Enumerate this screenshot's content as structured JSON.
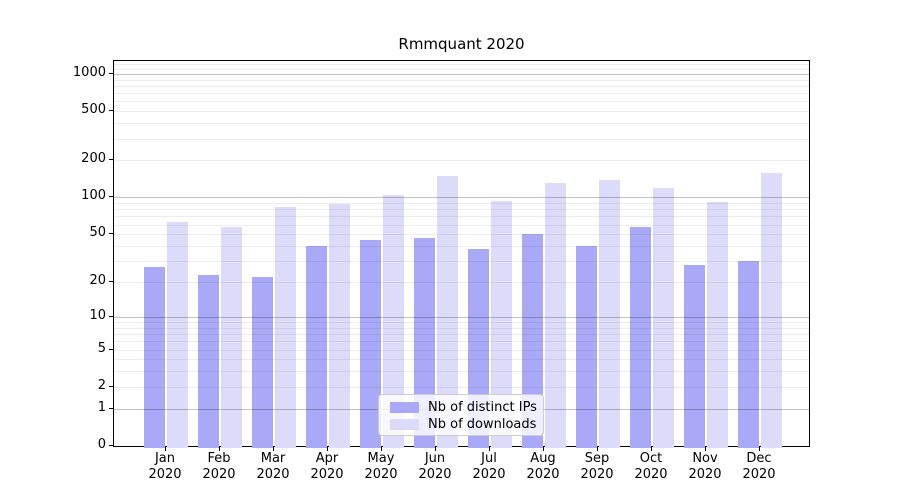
{
  "chart_data": {
    "type": "bar",
    "title": "Rmmquant 2020",
    "months": [
      "Jan",
      "Feb",
      "Mar",
      "Apr",
      "May",
      "Jun",
      "Jul",
      "Aug",
      "Sep",
      "Oct",
      "Nov",
      "Dec"
    ],
    "year_label": "2020",
    "series": [
      {
        "name": "Nb of distinct IPs",
        "color": "#a9a9f7",
        "values": [
          27,
          23,
          22,
          40,
          45,
          47,
          38,
          50,
          40,
          57,
          28,
          30
        ]
      },
      {
        "name": "Nb of downloads",
        "color": "#dcdcfa",
        "values": [
          63,
          57,
          84,
          89,
          104,
          150,
          94,
          131,
          139,
          120,
          92,
          158
        ]
      }
    ],
    "xlabel": "",
    "ylabel": "",
    "yscale": "log1p",
    "yticks": [
      0,
      1,
      2,
      5,
      10,
      20,
      50,
      100,
      200,
      500,
      1000
    ],
    "ylim": [
      0,
      1272
    ],
    "grid": "horizontal major and minor, drawn over bars",
    "legend_position": "lower center inside plot"
  }
}
